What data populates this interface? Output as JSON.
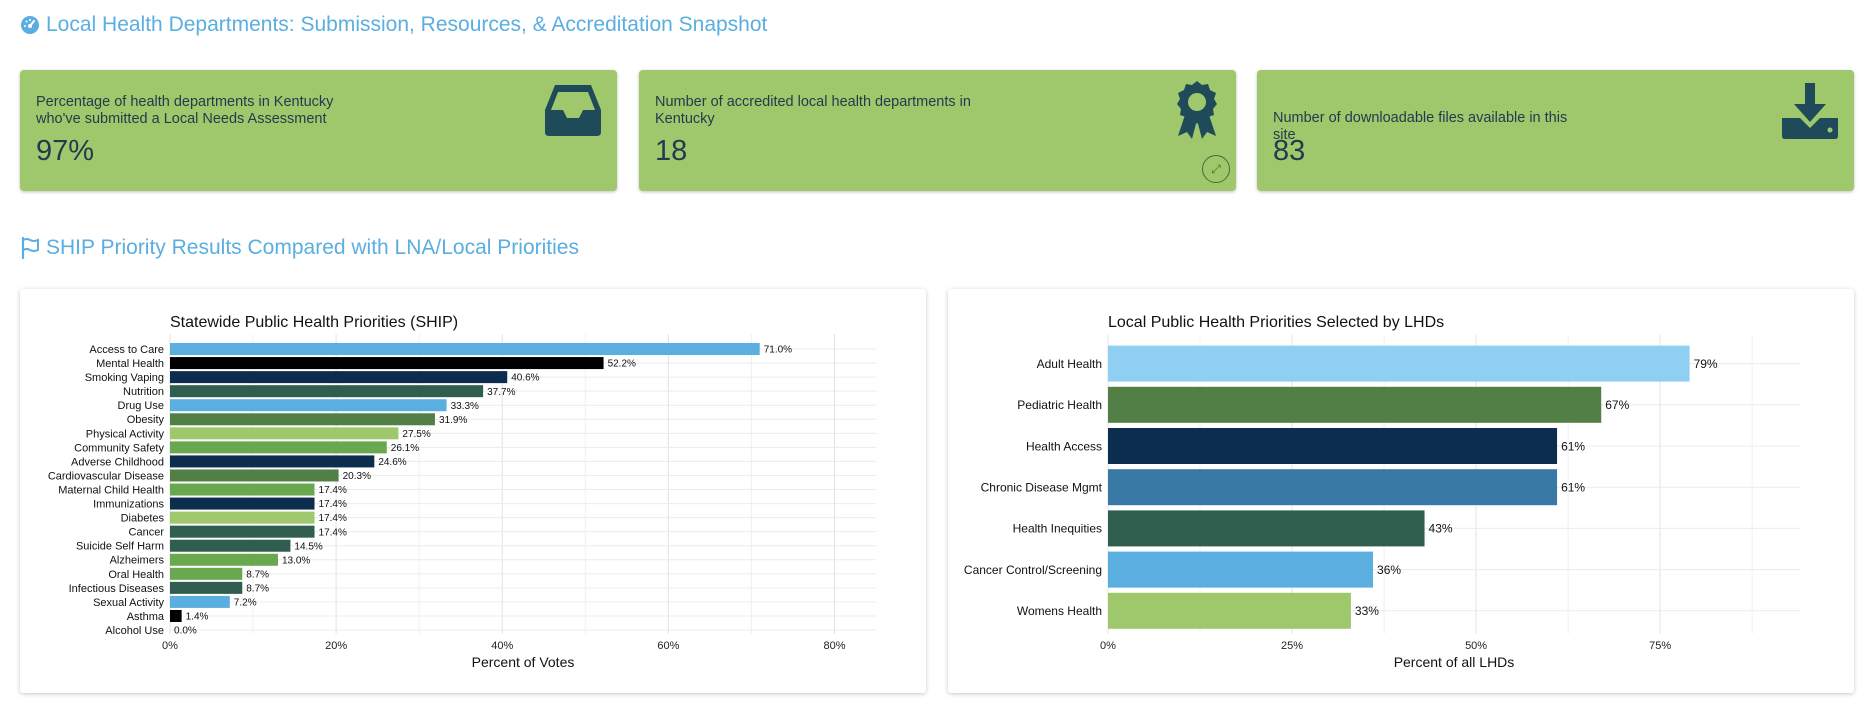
{
  "header": {
    "title": "Local Health Departments: Submission, Resources, & Accreditation Snapshot",
    "icon": "dashboard-gauge-icon"
  },
  "cards": [
    {
      "label": "Percentage of health departments in Kentucky who've submitted a Local Needs Assessment",
      "value": "97%",
      "icon": "inbox-tray-icon"
    },
    {
      "label": "Number of accredited local health departments in Kentucky",
      "value": "18",
      "icon": "award-ribbon-icon"
    },
    {
      "label": "Number of downloadable files available in this site",
      "value": "83",
      "icon": "download-icon"
    }
  ],
  "section2": {
    "title": "SHIP Priority Results Compared with LNA/Local Priorities",
    "icon": "flag-icon"
  },
  "colors": {
    "accent": "#5aaee0",
    "card_bg": "#9fc86c",
    "light_blue": "#5aaee0",
    "black": "#000000",
    "navy": "#0d2d4f",
    "dark_green": "#2f5e4e",
    "mid_green": "#527f45",
    "light_green": "#9fc86c",
    "green": "#6aa84f",
    "pale_blue": "#8ecff2",
    "steel_blue": "#3979a6"
  },
  "chart_data": [
    {
      "type": "bar",
      "orientation": "horizontal",
      "title": "Statewide Public Health Priorities (SHIP)",
      "xlabel": "Percent of Votes",
      "ylabel": "",
      "xlim": [
        0,
        85
      ],
      "xticks": [
        "0%",
        "20%",
        "40%",
        "60%",
        "80%"
      ],
      "xtick_values": [
        0,
        20,
        40,
        60,
        80
      ],
      "grid": true,
      "categories": [
        "Access to Care",
        "Mental Health",
        "Smoking Vaping",
        "Nutrition",
        "Drug Use",
        "Obesity",
        "Physical Activity",
        "Community Safety",
        "Adverse Childhood",
        "Cardiovascular Disease",
        "Maternal Child Health",
        "Immunizations",
        "Diabetes",
        "Cancer",
        "Suicide Self Harm",
        "Alzheimers",
        "Oral Health",
        "Infectious Diseases",
        "Sexual Activity",
        "Asthma",
        "Alcohol Use"
      ],
      "values": [
        71.0,
        52.2,
        40.6,
        37.7,
        33.3,
        31.9,
        27.5,
        26.1,
        24.6,
        20.3,
        17.4,
        17.4,
        17.4,
        17.4,
        14.5,
        13.0,
        8.7,
        8.7,
        7.2,
        1.4,
        0.0
      ],
      "labels": [
        "71.0%",
        "52.2%",
        "40.6%",
        "37.7%",
        "33.3%",
        "31.9%",
        "27.5%",
        "26.1%",
        "24.6%",
        "20.3%",
        "17.4%",
        "17.4%",
        "17.4%",
        "17.4%",
        "14.5%",
        "13.0%",
        "8.7%",
        "8.7%",
        "7.2%",
        "1.4%",
        "0.0%"
      ],
      "colors": [
        "#5aaee0",
        "#000000",
        "#0d2d4f",
        "#2f5e4e",
        "#5aaee0",
        "#527f45",
        "#9fc86c",
        "#6aa84f",
        "#0d2d4f",
        "#527f45",
        "#6aa84f",
        "#0d2d4f",
        "#9fc86c",
        "#2f5e4e",
        "#2f5e4e",
        "#6aa84f",
        "#6aa84f",
        "#2f5e4e",
        "#5aaee0",
        "#000000",
        "#0d2d4f"
      ]
    },
    {
      "type": "bar",
      "orientation": "horizontal",
      "title": "Local Public Health Priorities Selected by LHDs",
      "xlabel": "Percent of all LHDs",
      "ylabel": "",
      "xlim": [
        0,
        94
      ],
      "xticks": [
        "0%",
        "25%",
        "50%",
        "75%"
      ],
      "xtick_values": [
        0,
        25,
        50,
        75
      ],
      "grid": true,
      "categories": [
        "Adult Health",
        "Pediatric Health",
        "Health Access",
        "Chronic Disease Mgmt",
        "Health Inequities",
        "Cancer Control/Screening",
        "Womens Health"
      ],
      "values": [
        79,
        67,
        61,
        61,
        43,
        36,
        33
      ],
      "labels": [
        "79%",
        "67%",
        "61%",
        "61%",
        "43%",
        "36%",
        "33%"
      ],
      "colors": [
        "#8ecff2",
        "#527f45",
        "#0d2d4f",
        "#3979a6",
        "#2f5e4e",
        "#5aaee0",
        "#9fc86c"
      ]
    }
  ]
}
